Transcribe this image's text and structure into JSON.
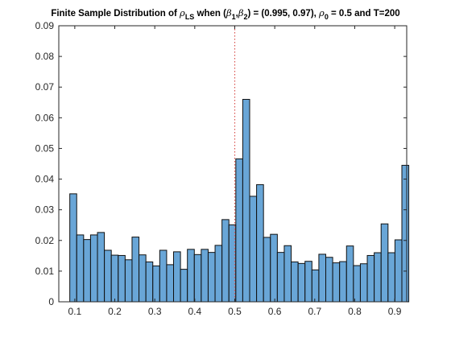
{
  "chart_data": {
    "type": "bar",
    "title": {
      "p1": "Finite Sample Distribution of ",
      "rho": "ρ",
      "ls": "LS",
      "p2": " when (",
      "b1": "β",
      "b1sub": "1",
      "comma": ",",
      "b2": "β",
      "b2sub": "2",
      "p3": ") = (0.995, 0.97), ",
      "rho0": "ρ",
      "rho0sub": "0",
      "p4": " = 0.5 and T=200"
    },
    "xlabel": "",
    "ylabel": "",
    "xlim": [
      0.06,
      0.93
    ],
    "ylim": [
      0,
      0.09
    ],
    "xticks": [
      "0.1",
      "0.2",
      "0.3",
      "0.4",
      "0.5",
      "0.6",
      "0.7",
      "0.8",
      "0.9"
    ],
    "yticks": [
      "0",
      "0.01",
      "0.02",
      "0.03",
      "0.04",
      "0.05",
      "0.06",
      "0.07",
      "0.08",
      "0.09"
    ],
    "bin_width": 0.0173,
    "bin_start": 0.0875,
    "values": [
      0.0352,
      0.0218,
      0.0203,
      0.0218,
      0.0226,
      0.0168,
      0.0152,
      0.0151,
      0.0137,
      0.0211,
      0.0153,
      0.013,
      0.0117,
      0.0168,
      0.0121,
      0.0163,
      0.0106,
      0.0171,
      0.0154,
      0.0171,
      0.0161,
      0.0184,
      0.0268,
      0.0251,
      0.0466,
      0.066,
      0.0344,
      0.0382,
      0.021,
      0.022,
      0.0161,
      0.0183,
      0.013,
      0.0125,
      0.0132,
      0.0104,
      0.0155,
      0.0145,
      0.0127,
      0.0131,
      0.0182,
      0.0118,
      0.0124,
      0.0151,
      0.016,
      0.0254,
      0.016,
      0.0202,
      0.0445
    ],
    "reference_line_x": 0.5,
    "bar_color": "#4f97d0",
    "reference_line_color": "#d9534f"
  }
}
